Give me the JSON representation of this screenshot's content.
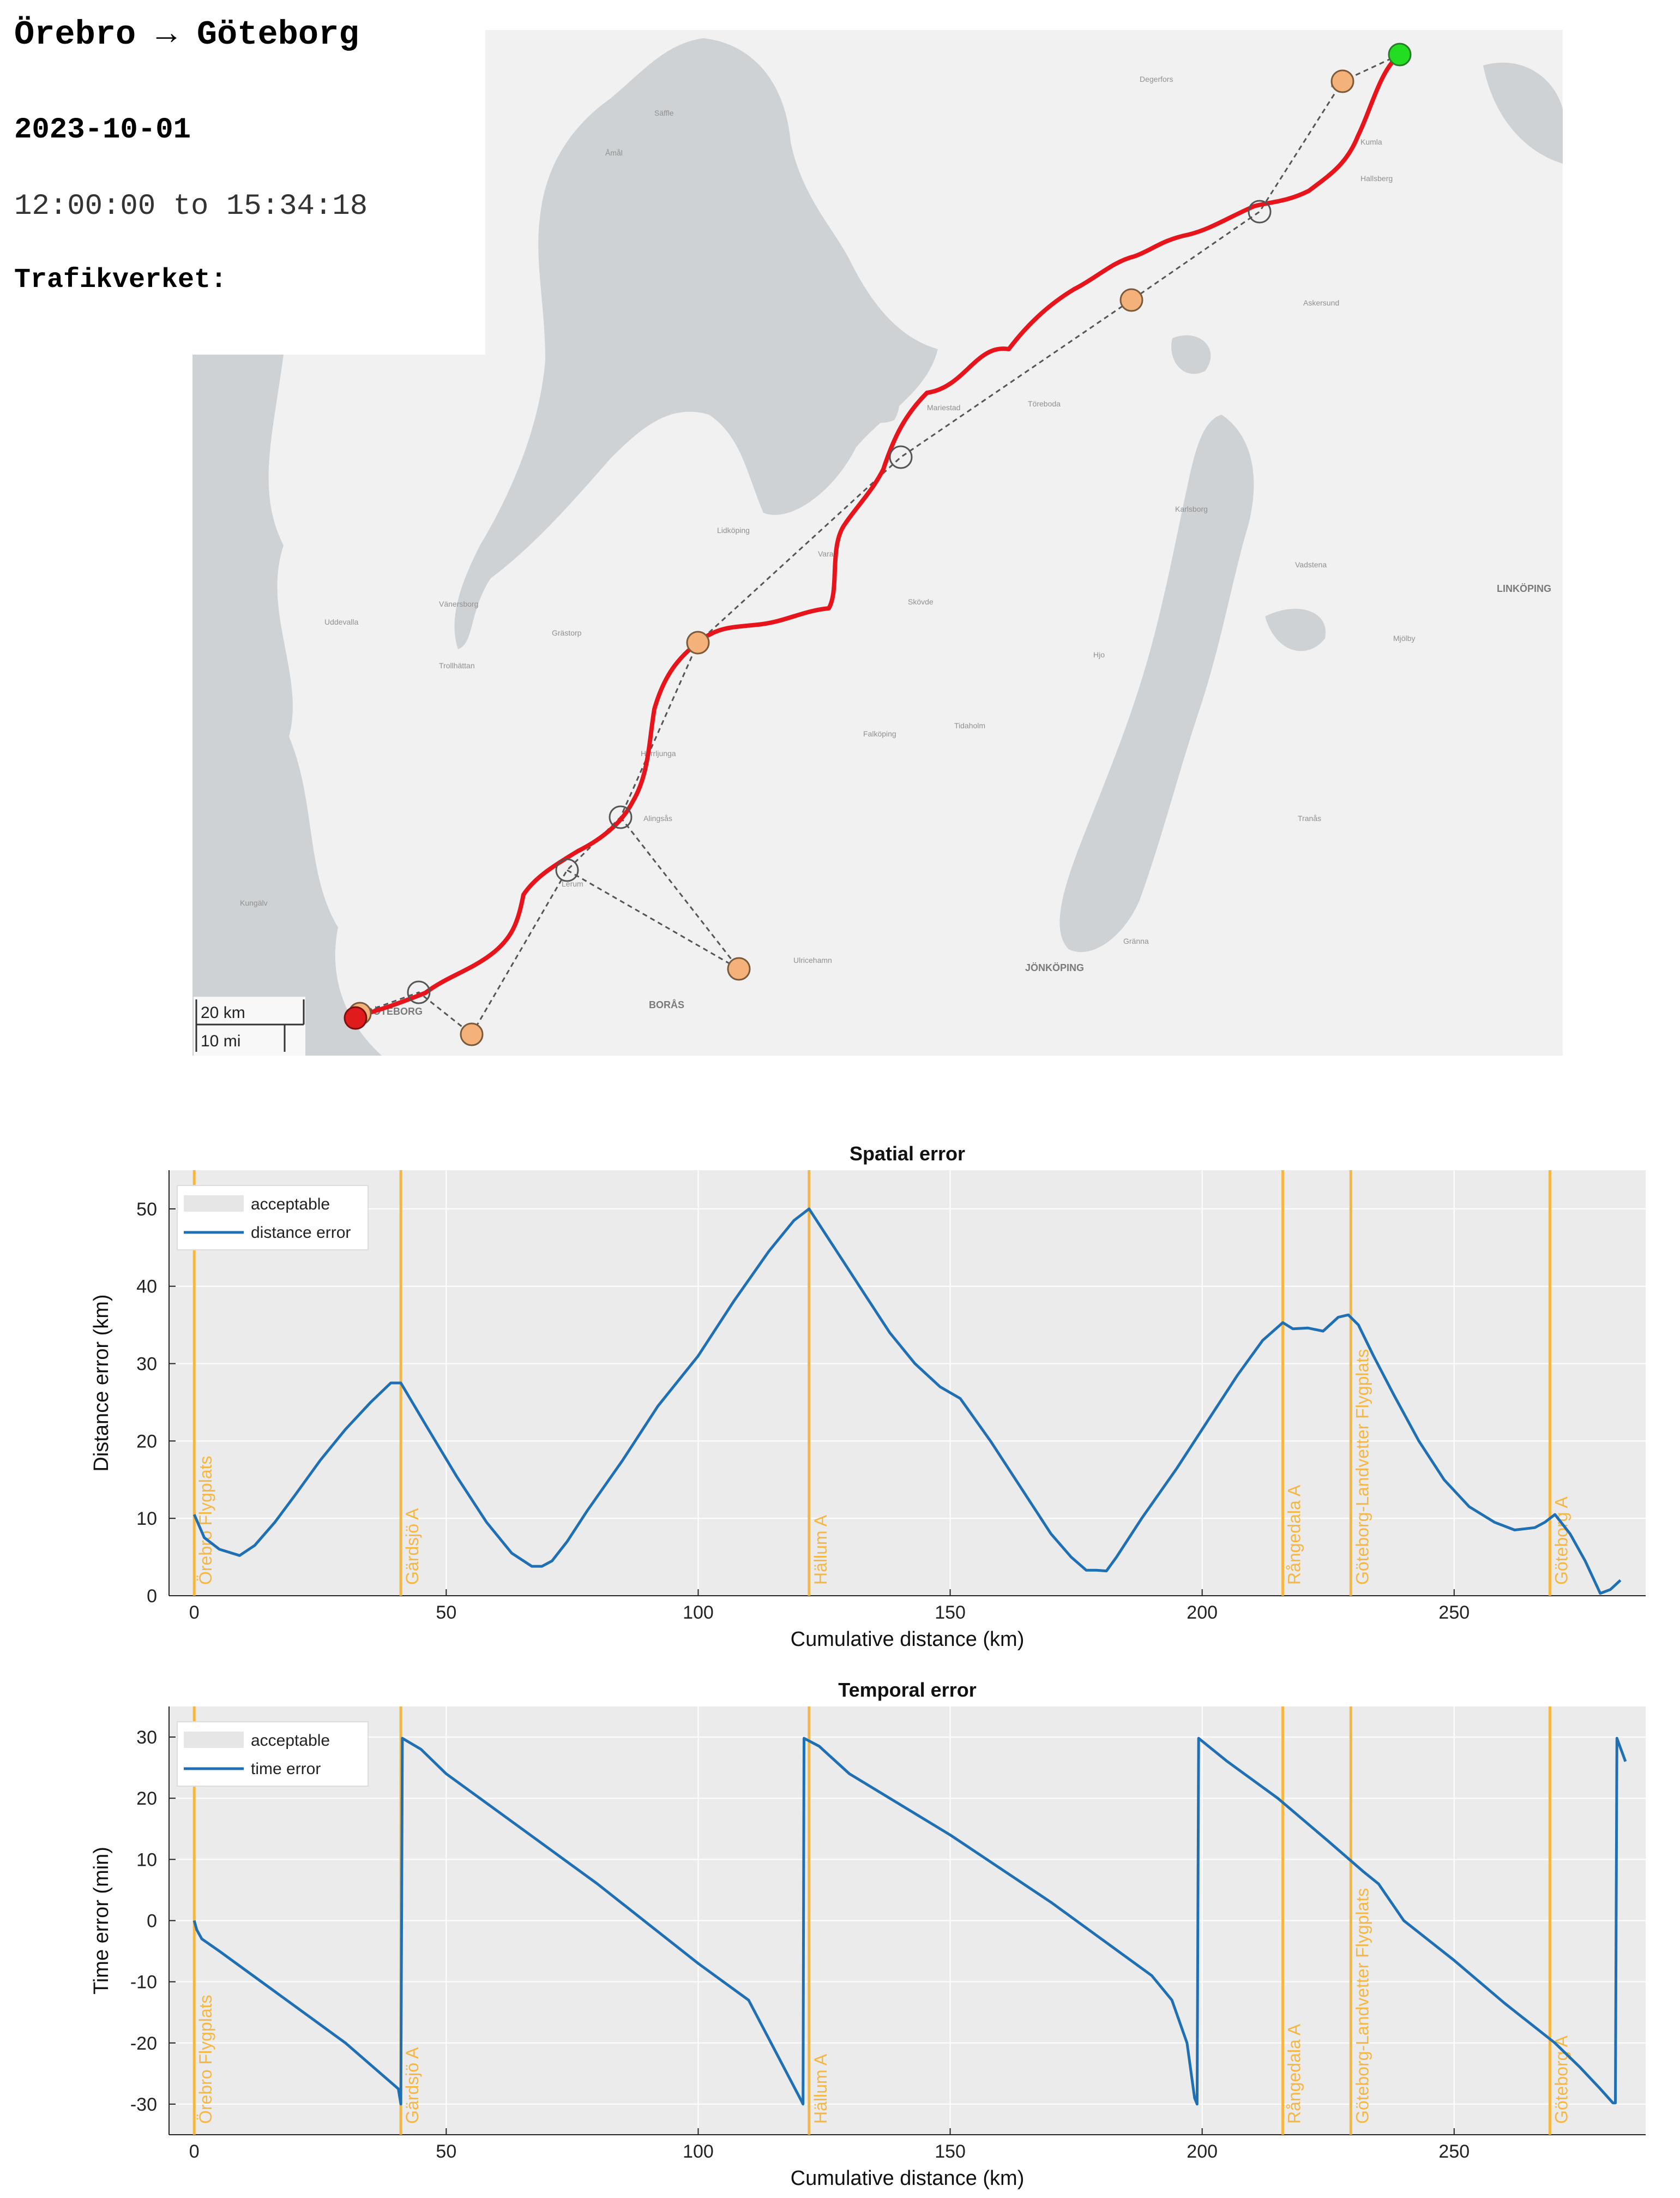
{
  "header": {
    "title": "Örebro → Göteborg",
    "date": "2023-10-01",
    "time_range": "12:00:00 to 15:34:18",
    "source": "Trafikverket:"
  },
  "map": {
    "scale_km": "20 km",
    "scale_mi": "10 mi",
    "place_labels": [
      "LINKÖPING",
      "JÖNKÖPING",
      "BORÅS",
      "GÖTEBORG",
      "Trollhättan",
      "Vänersborg",
      "Mariestad",
      "Lidköping",
      "Skövde",
      "Falköping",
      "Hallsberg",
      "Kumla",
      "Degerfors",
      "Töreboda",
      "Tidaholm",
      "Ulricehamn",
      "Alingsås",
      "Lerum",
      "Gränna",
      "Tranås",
      "Vadstena",
      "Mjölby",
      "Kungälv",
      "Uddevalla",
      "Herrljunga",
      "Vara",
      "Grästorp",
      "Laxå",
      "Askersund",
      "Karlsborg",
      "Hjo",
      "Säffle",
      "Åmål"
    ],
    "colors": {
      "route": "#e8141c",
      "start_marker": "#22dd22",
      "end_marker": "#e01b1b",
      "station_marker": "#f4b27a",
      "water": "#cfd2d4",
      "land": "#f1f1f1"
    }
  },
  "chart_data": [
    {
      "type": "line",
      "title": "Spatial error",
      "xlabel": "Cumulative distance (km)",
      "ylabel": "Distance error (km)",
      "xlim": [
        -5,
        288
      ],
      "ylim": [
        0,
        55
      ],
      "xticks": [
        0,
        50,
        100,
        150,
        200,
        250
      ],
      "yticks": [
        0,
        10,
        20,
        30,
        40,
        50
      ],
      "grid": true,
      "legend": {
        "placement": "top-left",
        "entries": [
          "acceptable",
          "distance error"
        ]
      },
      "series": [
        {
          "name": "distance error",
          "color": "#1f6fb4",
          "x": [
            0,
            2,
            5,
            9,
            12,
            16,
            20,
            25,
            30,
            35,
            39,
            41,
            46,
            52,
            58,
            63,
            67,
            69,
            71,
            74,
            78,
            85,
            92,
            100,
            107,
            114,
            119,
            122,
            127,
            133,
            138,
            143,
            148,
            152,
            158,
            164,
            170,
            174,
            177,
            179,
            181,
            183,
            188,
            195,
            201,
            207,
            212,
            216,
            218,
            221,
            224,
            227,
            229,
            231,
            234,
            238,
            243,
            248,
            253,
            258,
            262,
            266,
            268,
            270,
            273,
            276,
            279,
            281,
            283
          ],
          "y": [
            10.5,
            7.5,
            6,
            5.2,
            6.5,
            9.5,
            13,
            17.5,
            21.5,
            25,
            27.5,
            27.5,
            22,
            15.5,
            9.5,
            5.5,
            3.8,
            3.8,
            4.5,
            7,
            11,
            17.5,
            24.5,
            31,
            38,
            44.5,
            48.5,
            50,
            45,
            39,
            34,
            30,
            27,
            25.5,
            20,
            14,
            8,
            5,
            3.3,
            3.3,
            3.2,
            5,
            10,
            16.5,
            22.5,
            28.5,
            33,
            35.3,
            34.5,
            34.6,
            34.2,
            36,
            36.3,
            35,
            31,
            26,
            20,
            15,
            11.5,
            9.5,
            8.5,
            8.8,
            9.5,
            10.5,
            8,
            4.5,
            0.3,
            0.8,
            2
          ]
        }
      ],
      "markers": [
        {
          "label": "Örebro Flygplats",
          "x": 0
        },
        {
          "label": "Gärdsjö A",
          "x": 41
        },
        {
          "label": "Hällum A",
          "x": 122
        },
        {
          "label": "Rångedala A",
          "x": 216
        },
        {
          "label": "Göteborg-Landvetter Flygplats",
          "x": 229.5
        },
        {
          "label": "Göteborg A",
          "x": 269
        }
      ],
      "marker_color": "#f5b642"
    },
    {
      "type": "line",
      "title": "Temporal error",
      "xlabel": "Cumulative distance (km)",
      "ylabel": "Time error (min)",
      "xlim": [
        -5,
        288
      ],
      "ylim": [
        -35,
        35
      ],
      "xticks": [
        0,
        50,
        100,
        150,
        200,
        250
      ],
      "yticks": [
        -30,
        -20,
        -10,
        0,
        10,
        20,
        30
      ],
      "grid": true,
      "legend": {
        "placement": "top-left",
        "entries": [
          "acceptable",
          "time error"
        ]
      },
      "series": [
        {
          "name": "time error",
          "color": "#1f6fb4",
          "x": [
            0,
            0.5,
            1.5,
            5,
            10,
            20,
            30,
            40.5,
            41,
            41.3,
            45,
            50,
            55,
            60,
            70,
            80,
            90,
            100,
            110,
            120.5,
            120.8,
            121,
            124,
            130,
            140,
            150,
            160,
            170,
            180,
            190,
            194,
            197,
            198.5,
            199,
            199.3,
            205,
            215,
            225,
            232,
            235,
            240,
            250,
            260,
            270,
            275,
            279,
            281.5,
            282,
            282.3,
            284
          ],
          "y": [
            0,
            -1.5,
            -3,
            -5,
            -8,
            -14,
            -20,
            -27.5,
            -30,
            29.8,
            28,
            24,
            21,
            18,
            12,
            6,
            -0.5,
            -7,
            -13,
            -29.5,
            -30,
            29.8,
            28.5,
            24,
            19,
            14,
            8.5,
            3,
            -3,
            -9,
            -13,
            -20,
            -29,
            -30,
            29.8,
            26,
            20,
            13,
            8,
            6,
            0,
            -6.5,
            -13.5,
            -20,
            -24,
            -27.5,
            -29.8,
            -29.8,
            29.8,
            26
          ]
        }
      ],
      "markers": [
        {
          "label": "Örebro Flygplats",
          "x": 0
        },
        {
          "label": "Gärdsjö A",
          "x": 41
        },
        {
          "label": "Hällum A",
          "x": 122
        },
        {
          "label": "Rångedala A",
          "x": 216
        },
        {
          "label": "Göteborg-Landvetter Flygplats",
          "x": 229.5
        },
        {
          "label": "Göteborg A",
          "x": 269
        }
      ],
      "marker_color": "#f5b642"
    }
  ]
}
